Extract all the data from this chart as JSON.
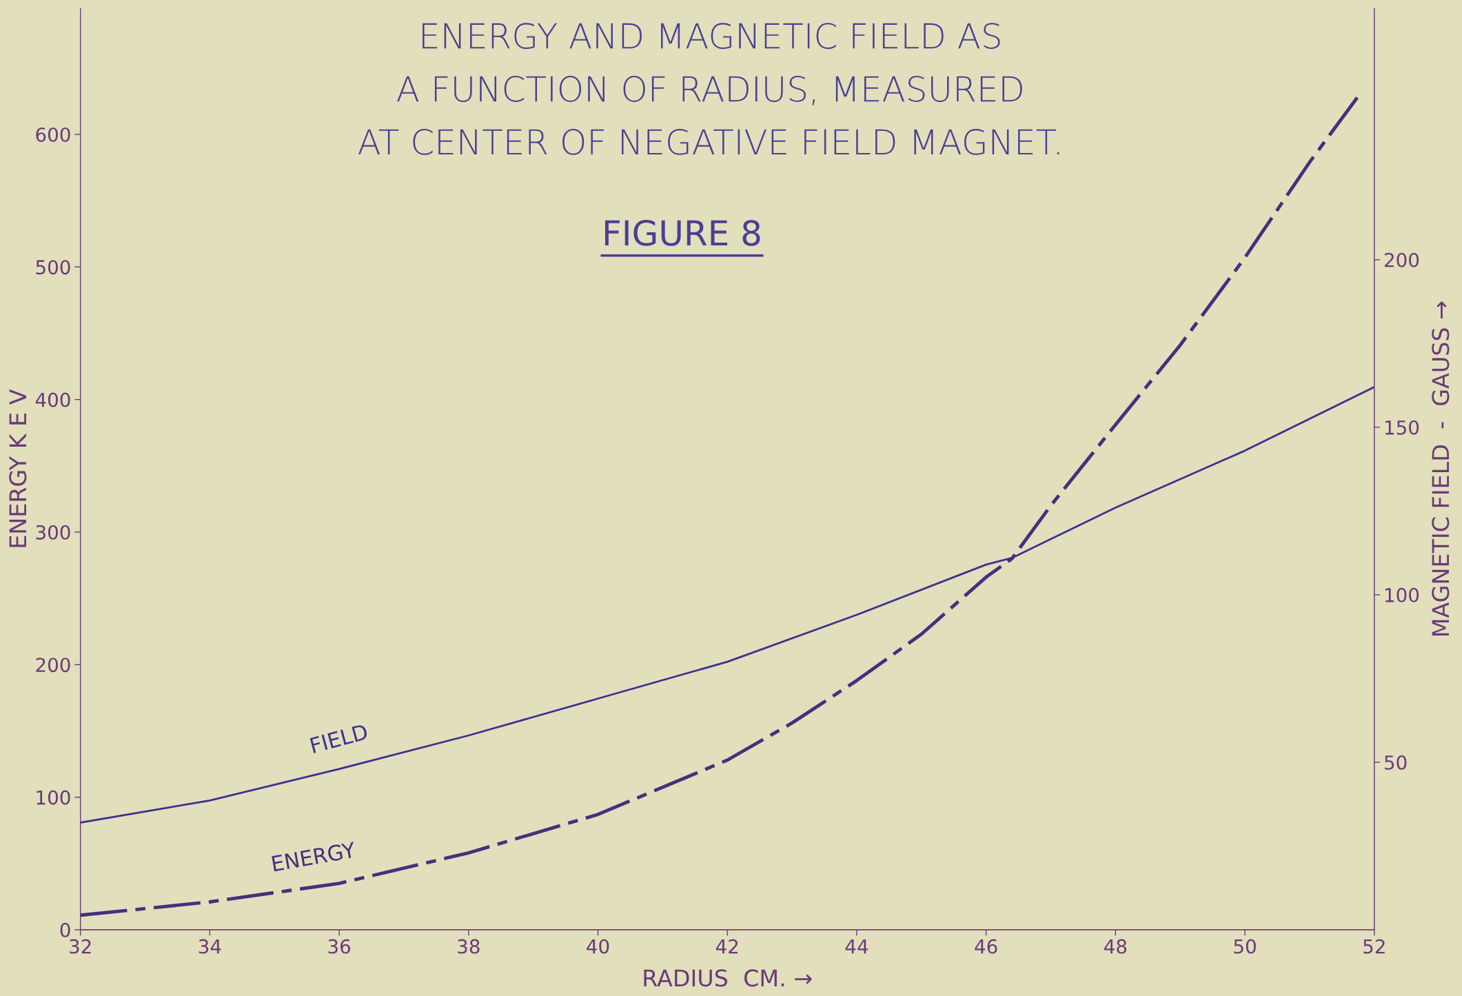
{
  "chart_data": {
    "type": "line",
    "title": "ENERGY AND MAGNETIC FIELD AS\nA FUNCTION OF RADIUS, MEASURED\nAT CENTER OF NEGATIVE FIELD MAGNET.",
    "subtitle": "FIGURE 8",
    "xlabel": "RADIUS  CM. →",
    "ylabel": "ENERGY K E V",
    "y2label": "MAGNETIC FIELD  -  GAUSS →",
    "xlim": [
      32,
      52
    ],
    "xticks": [
      32,
      34,
      36,
      38,
      40,
      42,
      44,
      46,
      48,
      50,
      52
    ],
    "ylim": [
      0,
      695
    ],
    "yticks": [
      0,
      100,
      200,
      300,
      400,
      500,
      600
    ],
    "y2lim": [
      0,
      275
    ],
    "y2ticks": [
      50,
      100,
      150,
      200
    ],
    "grid": false,
    "marker": "none",
    "series": [
      {
        "name": "ENERGY",
        "color": "#44307e",
        "line_style": "dashed",
        "x": [
          32,
          34,
          36,
          38,
          40,
          42,
          43,
          44,
          45,
          46,
          46.4,
          47,
          48,
          49,
          50,
          51,
          51.8
        ],
        "values": [
          11,
          21,
          35,
          58,
          87,
          128,
          156,
          188,
          223,
          266,
          280,
          320,
          381,
          441,
          507,
          579,
          632
        ]
      },
      {
        "name": "FIELD",
        "color": "#3e3090",
        "line_style": "solid",
        "axis": "y2",
        "x": [
          32,
          34,
          36,
          38,
          40,
          42,
          44,
          46,
          46.4,
          48,
          50,
          52
        ],
        "values": [
          32,
          38.6,
          48,
          58,
          69,
          80,
          94,
          109,
          111,
          126,
          143,
          162
        ]
      }
    ]
  }
}
